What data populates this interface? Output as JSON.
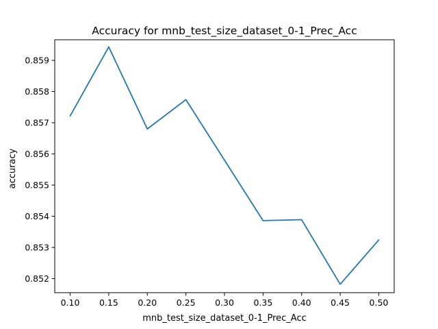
{
  "chart_data": {
    "type": "line",
    "title": "Accuracy for mnb_test_size_dataset_0-1_Prec_Acc",
    "xlabel": "mnb_test_size_dataset_0-1_Prec_Acc",
    "ylabel": "accuracy",
    "x": [
      0.1,
      0.15,
      0.2,
      0.25,
      0.3,
      0.35,
      0.4,
      0.45,
      0.5
    ],
    "series": [
      {
        "values": [
          0.85722,
          0.85943,
          0.8568,
          0.85774,
          0.8558,
          0.85386,
          0.85389,
          0.85182,
          0.85324
        ],
        "color": "#1f77b4"
      }
    ],
    "xlim": [
      0.08,
      0.52
    ],
    "ylim": [
      0.85155,
      0.85966
    ],
    "xticks": [
      0.1,
      0.15,
      0.2,
      0.25,
      0.3,
      0.35,
      0.4,
      0.45,
      0.5
    ],
    "xtick_labels": [
      "0.10",
      "0.15",
      "0.20",
      "0.25",
      "0.30",
      "0.35",
      "0.40",
      "0.45",
      "0.50"
    ],
    "yticks": [
      0.852,
      0.853,
      0.854,
      0.855,
      0.856,
      0.857,
      0.858,
      0.859
    ],
    "ytick_labels": [
      "0.852",
      "0.853",
      "0.854",
      "0.855",
      "0.856",
      "0.857",
      "0.858",
      "0.859"
    ],
    "grid": false,
    "legend": "none"
  }
}
